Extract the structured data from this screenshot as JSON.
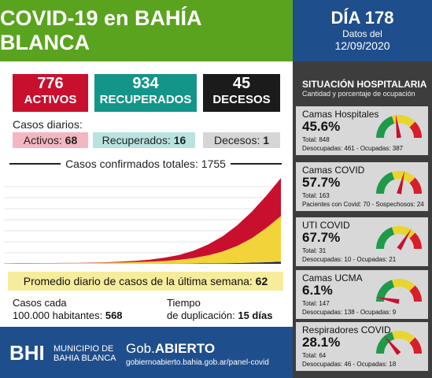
{
  "header": {
    "title": "COVID-19 en BAHÍA BLANCA",
    "day": "DÍA 178",
    "date_label": "Datos del",
    "date": "12/09/2020"
  },
  "counters": [
    {
      "value": 776,
      "label": "ACTIVOS",
      "color": "#c8102e"
    },
    {
      "value": 934,
      "label": "RECUPERADOS",
      "color": "#14958a"
    },
    {
      "value": 45,
      "label": "DECESOS",
      "color": "#1b1b1b"
    }
  ],
  "daily": {
    "title": "Casos diarios:",
    "items": [
      {
        "label": "Activos:",
        "value": 68,
        "color": "#f4b6c2"
      },
      {
        "label": "Recuperados:",
        "value": 16,
        "color": "#b9e3e0"
      },
      {
        "label": "Decesos:",
        "value": 1,
        "color": "#d6d6d6"
      }
    ]
  },
  "chart_data": {
    "type": "area",
    "stacked": true,
    "title": "Casos confirmados totales: 1755",
    "series": [
      {
        "color": "#1f2a5a",
        "values": [
          0,
          0,
          1,
          1,
          1,
          1,
          1,
          2,
          2,
          3,
          3,
          4,
          5,
          7,
          9,
          12,
          17,
          24,
          33,
          45
        ]
      },
      {
        "color": "#f2d43a",
        "values": [
          0,
          2,
          5,
          10,
          14,
          17,
          20,
          23,
          27,
          33,
          42,
          55,
          75,
          110,
          165,
          240,
          350,
          500,
          700,
          934
        ]
      },
      {
        "color": "#c8102e",
        "values": [
          5,
          8,
          6,
          4,
          3,
          3,
          5,
          8,
          15,
          25,
          40,
          65,
          100,
          150,
          220,
          310,
          420,
          540,
          660,
          776
        ]
      }
    ]
  },
  "weekly": {
    "label": "Promedio diario de casos de la última semana:",
    "value": 62
  },
  "rate": {
    "label_lines": [
      "Casos cada",
      "100.000 habitantes:"
    ],
    "value": 568
  },
  "doubling": {
    "label_lines": [
      "Tiempo",
      "de duplicación:"
    ],
    "value": "15 días"
  },
  "footer": {
    "logo": "BHI",
    "org_lines": [
      "MUNICIPIO DE",
      "BAHIA BLANCA"
    ],
    "brand_a": "Gob.",
    "brand_b": "ABIERTO",
    "url": "gobiernoabierto.bahia.gob.ar/panel-covid"
  },
  "hospital": {
    "title": "SITUACIÓN HOSPITALARIA",
    "subtitle": "Cantidad y porcentaje de ocupación",
    "items": [
      {
        "name": "Camas Hospitales",
        "value": 45.6,
        "value_label": "45.6%",
        "total": "Total: 848",
        "detail": "Desocupadas: 461 - Ocupadas: 387"
      },
      {
        "name": "Camas COVID",
        "value": 57.7,
        "value_label": "57.7%",
        "total": "Total: 163",
        "detail": "Pacientes con Covid: 70 - Sospechosos: 24"
      },
      {
        "name": "UTI COVID",
        "value": 67.7,
        "value_label": "67.7%",
        "total": "Total: 31",
        "detail": "Desocupadas: 10 - Ocupadas: 21"
      },
      {
        "name": "Camas UCMA",
        "value": 6.1,
        "value_label": "6.1%",
        "total": "Total: 147",
        "detail": "Desocupadas: 138 - Ocupadas: 9"
      },
      {
        "name": "Respiradores COVID",
        "value": 28.1,
        "value_label": "28.1%",
        "total": "Total: 64",
        "detail": "Desocupadas: 46 - Ocupadas: 18"
      }
    ]
  }
}
